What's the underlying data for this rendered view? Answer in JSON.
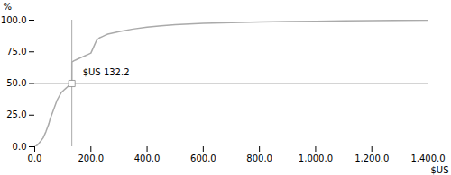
{
  "chart_data": {
    "type": "line",
    "xlabel": "$US",
    "ylabel": "%",
    "color": "#aaaaaa",
    "xlim": [
      0,
      1400
    ],
    "ylim": [
      0,
      100
    ],
    "xticks": [
      {
        "value": 0,
        "label": "0.0"
      },
      {
        "value": 200,
        "label": "200.0"
      },
      {
        "value": 400,
        "label": "400.0"
      },
      {
        "value": 600,
        "label": "600.0"
      },
      {
        "value": 800,
        "label": "800.0"
      },
      {
        "value": 1000,
        "label": "1,000.0"
      },
      {
        "value": 1200,
        "label": "1,200.0"
      },
      {
        "value": 1400,
        "label": "1,400.0"
      }
    ],
    "yticks": [
      {
        "value": 0,
        "label": "0.0"
      },
      {
        "value": 25,
        "label": "25.0"
      },
      {
        "value": 50,
        "label": "50.0"
      },
      {
        "value": 75,
        "label": "75.0"
      },
      {
        "value": 100,
        "label": "100.0"
      }
    ],
    "reference_lines": {
      "x": 132.2,
      "y": 50
    },
    "annotation": {
      "text": "$US 132.2",
      "x": 132.2,
      "y": 50
    },
    "x": [
      0,
      5,
      10,
      20,
      30,
      40,
      45,
      50,
      55,
      60,
      65,
      70,
      75,
      80,
      85,
      90,
      95,
      100,
      105,
      110,
      115,
      120,
      125,
      130,
      132.2,
      132.3,
      140,
      150,
      160,
      170,
      180,
      190,
      200,
      210,
      220,
      230,
      240,
      250,
      260,
      300,
      350,
      400,
      450,
      500,
      600,
      700,
      800,
      900,
      1000,
      1100,
      1200,
      1300,
      1400
    ],
    "values": [
      0,
      0.5,
      1.5,
      4,
      7,
      12,
      15,
      18,
      22,
      25,
      28,
      31,
      34,
      37,
      39,
      41,
      43,
      44,
      45,
      46,
      47,
      48,
      49,
      49.8,
      50,
      67,
      68,
      69,
      70,
      71,
      72,
      73,
      74,
      79,
      84,
      86,
      87,
      88,
      89,
      91,
      93,
      94.5,
      95.5,
      96.5,
      97.5,
      98,
      98.5,
      99,
      99.2,
      99.5,
      99.7,
      99.85,
      99.95
    ]
  }
}
